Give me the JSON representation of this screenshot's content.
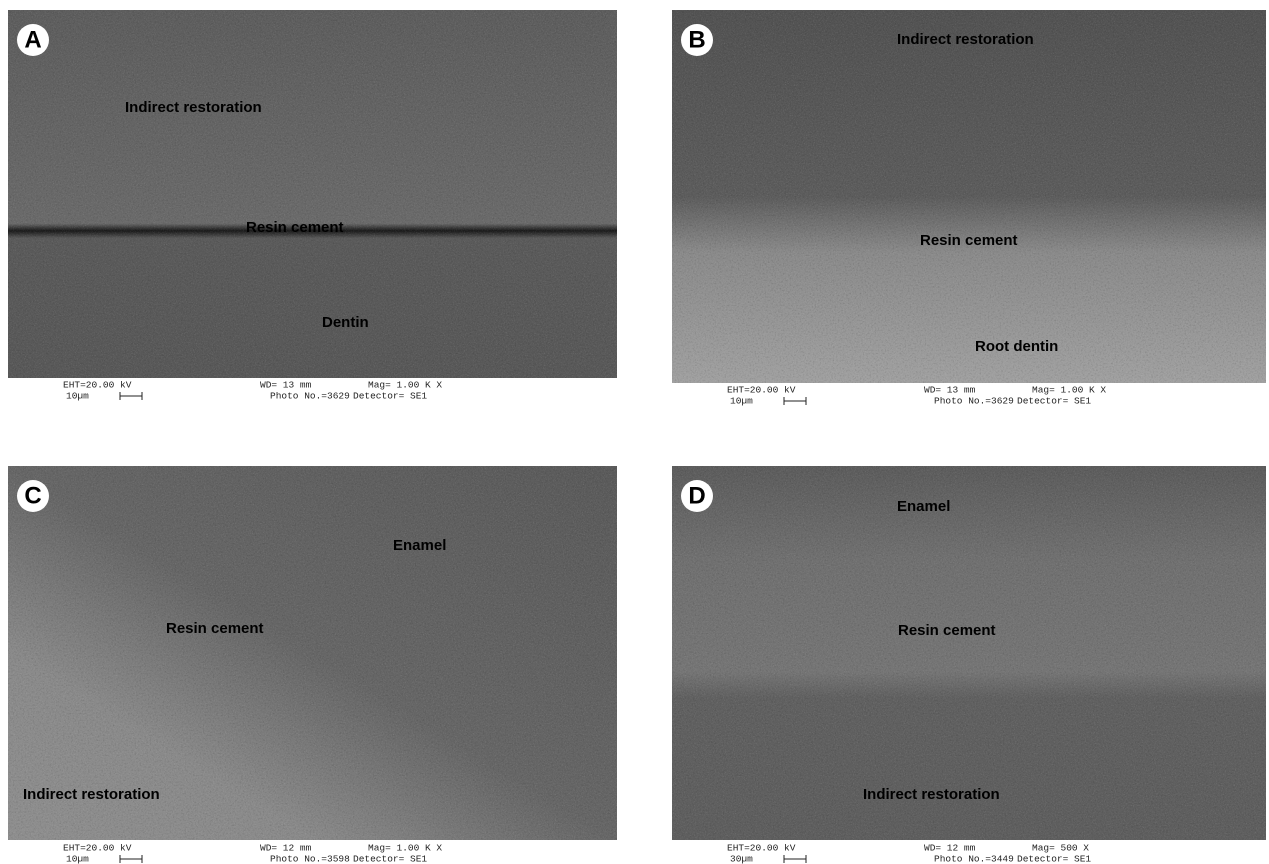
{
  "panels": [
    {
      "letter": "A",
      "labels": [
        "Indirect restoration",
        "Resin cement",
        "Dentin"
      ],
      "info": {
        "eht": "EHT=20.00 kV",
        "wd": "WD= 13 mm",
        "mag": "Mag= 1.00 K X",
        "scale": "10µm",
        "photo": "Photo No.=3629",
        "detector": "Detector= SE1"
      }
    },
    {
      "letter": "B",
      "labels": [
        "Indirect restoration",
        "Resin cement",
        "Root dentin"
      ],
      "info": {
        "eht": "EHT=20.00 kV",
        "wd": "WD= 13 mm",
        "mag": "Mag= 1.00 K X",
        "scale": "10µm",
        "photo": "Photo No.=3629",
        "detector": "Detector= SE1"
      }
    },
    {
      "letter": "C",
      "labels": [
        "Enamel",
        "Resin cement",
        "Indirect restoration"
      ],
      "info": {
        "eht": "EHT=20.00 kV",
        "wd": "WD= 12 mm",
        "mag": "Mag= 1.00 K X",
        "scale": "10µm",
        "photo": "Photo No.=3598",
        "detector": "Detector= SE1"
      }
    },
    {
      "letter": "D",
      "labels": [
        "Enamel",
        "Resin cement",
        "Indirect restoration"
      ],
      "info": {
        "eht": "EHT=20.00 kV",
        "wd": "WD= 12 mm",
        "mag": "Mag= 500 X",
        "scale": "30µm",
        "photo": "Photo No.=3449",
        "detector": "Detector= SE1"
      }
    }
  ]
}
